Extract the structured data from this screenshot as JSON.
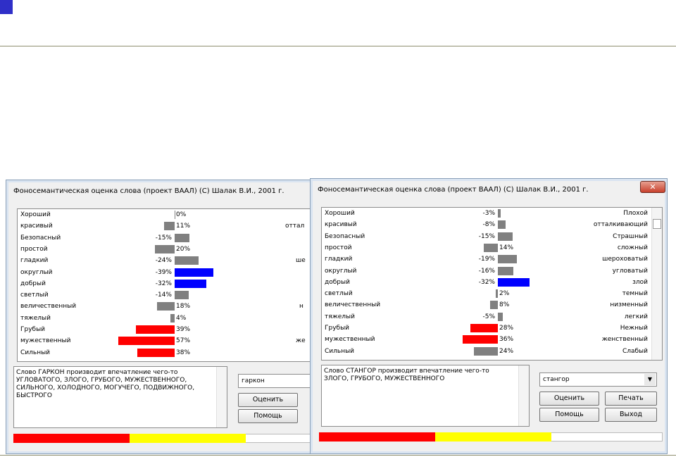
{
  "windows": [
    {
      "title": "Фоносемантическая оценка слова  (проект ВААЛ)  (С) Шалак В.И., 2001 г.",
      "rows": [
        {
          "label": "Хороший",
          "value": 0,
          "value_label": "0%",
          "color": "#808080"
        },
        {
          "label": "красивый",
          "value": 11,
          "value_label": "11%",
          "color": "#808080",
          "right": "оттал"
        },
        {
          "label": "Безопасный",
          "value": -15,
          "value_label": "-15%",
          "color": "#808080"
        },
        {
          "label": "простой",
          "value": 20,
          "value_label": "20%",
          "color": "#808080"
        },
        {
          "label": "гладкий",
          "value": -24,
          "value_label": "-24%",
          "color": "#808080",
          "right": "ше"
        },
        {
          "label": "округлый",
          "value": -39,
          "value_label": "-39%",
          "color": "#0000ff"
        },
        {
          "label": "добрый",
          "value": -32,
          "value_label": "-32%",
          "color": "#0000ff"
        },
        {
          "label": "светлый",
          "value": -14,
          "value_label": "-14%",
          "color": "#808080"
        },
        {
          "label": "величественный",
          "value": 18,
          "value_label": "18%",
          "color": "#808080",
          "right": "н"
        },
        {
          "label": "тяжелый",
          "value": 4,
          "value_label": "4%",
          "color": "#808080"
        },
        {
          "label": "Грубый",
          "value": 39,
          "value_label": "39%",
          "color": "#ff0000"
        },
        {
          "label": "мужественный",
          "value": 57,
          "value_label": "57%",
          "color": "#ff0000",
          "right": "же"
        },
        {
          "label": "Сильный",
          "value": 38,
          "value_label": "38%",
          "color": "#ff0000"
        }
      ],
      "message": "Слово ГАРКОН производит впечатление чего-то УГЛОВАТОГО, ЗЛОГО, ГРУБОГО, МУЖЕСТВЕННОГО, СИЛЬНОГО, ХОЛОДНОГО, МОГУЧЕГО, ПОДВИЖНОГО, БЫСТРОГО",
      "word": "гаркон",
      "buttons": [
        "Оценить",
        "Помощь"
      ]
    },
    {
      "title": "Фоносемантическая оценка слова  (проект ВААЛ)  (С) Шалак В.И., 2001 г.",
      "rows": [
        {
          "label": "Хороший",
          "value": -3,
          "value_label": "-3%",
          "color": "#808080",
          "right": "Плохой"
        },
        {
          "label": "красивый",
          "value": -8,
          "value_label": "-8%",
          "color": "#808080",
          "right": "отталкивающий"
        },
        {
          "label": "Безопасный",
          "value": -15,
          "value_label": "-15%",
          "color": "#808080",
          "right": "Страшный"
        },
        {
          "label": "простой",
          "value": 14,
          "value_label": "14%",
          "color": "#808080",
          "right": "сложный"
        },
        {
          "label": "гладкий",
          "value": -19,
          "value_label": "-19%",
          "color": "#808080",
          "right": "шероховатый"
        },
        {
          "label": "округлый",
          "value": -16,
          "value_label": "-16%",
          "color": "#808080",
          "right": "угловатый"
        },
        {
          "label": "добрый",
          "value": -32,
          "value_label": "-32%",
          "color": "#0000ff",
          "right": "злой"
        },
        {
          "label": "светлый",
          "value": 2,
          "value_label": "2%",
          "color": "#808080",
          "right": "темный"
        },
        {
          "label": "величественный",
          "value": 8,
          "value_label": "8%",
          "color": "#808080",
          "right": "низменный"
        },
        {
          "label": "тяжелый",
          "value": -5,
          "value_label": "-5%",
          "color": "#808080",
          "right": "легкий"
        },
        {
          "label": "Грубый",
          "value": 28,
          "value_label": "28%",
          "color": "#ff0000",
          "right": "Нежный"
        },
        {
          "label": "мужественный",
          "value": 36,
          "value_label": "36%",
          "color": "#ff0000",
          "right": "женственный"
        },
        {
          "label": "Сильный",
          "value": 24,
          "value_label": "24%",
          "color": "#808080",
          "right": "Слабый"
        }
      ],
      "message": "Слово СТАНГОР производит впечатление чего-то  ЗЛОГО, ГРУБОГО, МУЖЕСТВЕННОГО",
      "word": "стангор",
      "buttons": [
        "Оценить",
        "Печать",
        "Помощь",
        "Выход"
      ]
    }
  ]
}
